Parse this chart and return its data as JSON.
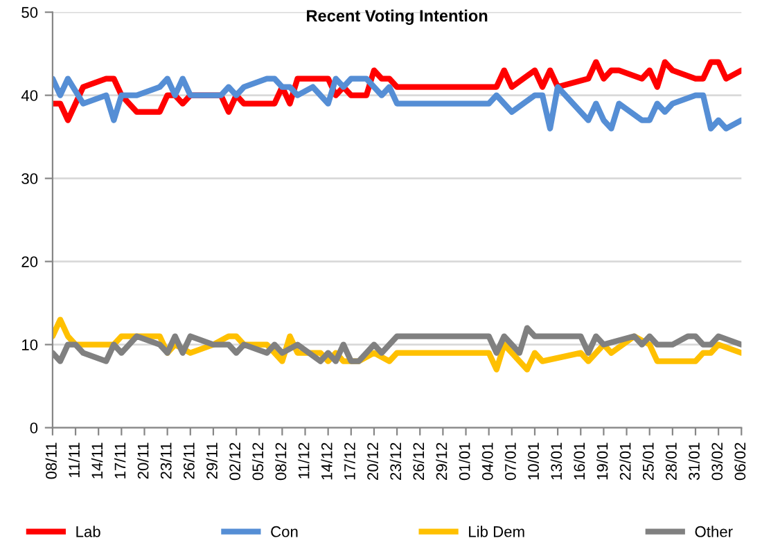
{
  "chart_data": {
    "type": "line",
    "title": "Recent Voting Intention",
    "categories": [
      "08/11",
      null,
      null,
      "11/11",
      null,
      null,
      "14/11",
      null,
      null,
      "17/11",
      null,
      null,
      "20/11",
      null,
      null,
      "23/11",
      null,
      null,
      "26/11",
      null,
      null,
      "29/11",
      null,
      null,
      "02/12",
      null,
      null,
      "05/12",
      null,
      null,
      "08/12",
      null,
      null,
      "11/12",
      null,
      null,
      "14/12",
      null,
      null,
      "17/12",
      null,
      null,
      "20/12",
      null,
      null,
      "23/12",
      null,
      null,
      "26/12",
      null,
      null,
      "29/12",
      null,
      null,
      "01/01",
      null,
      null,
      "04/01",
      null,
      null,
      "07/01",
      null,
      null,
      "10/01",
      null,
      null,
      "13/01",
      null,
      null,
      "16/01",
      null,
      null,
      "19/01",
      null,
      null,
      "22/01",
      null,
      null,
      "25/01",
      null,
      null,
      "28/01",
      null,
      null,
      "31/01",
      null,
      null,
      "03/02",
      null,
      null,
      "06/02"
    ],
    "ylim": [
      0,
      50
    ],
    "yticks": [
      0,
      10,
      20,
      30,
      40,
      50
    ],
    "grid": "y",
    "legend": "bottom",
    "marker": "none",
    "line_style": "solid",
    "series": [
      {
        "name": "Lab",
        "color": "#ff0000",
        "values": [
          39,
          39,
          37,
          null,
          41,
          null,
          null,
          42,
          42,
          40,
          null,
          38,
          null,
          null,
          38,
          40,
          40,
          39,
          40,
          null,
          null,
          null,
          40,
          38,
          40,
          39,
          null,
          null,
          null,
          39,
          41,
          39,
          42,
          null,
          null,
          null,
          42,
          40,
          41,
          40,
          null,
          40,
          43,
          42,
          42,
          41,
          null,
          null,
          null,
          null,
          null,
          null,
          null,
          null,
          null,
          null,
          null,
          null,
          41,
          43,
          41,
          null,
          null,
          43,
          41,
          43,
          41,
          null,
          null,
          null,
          42,
          44,
          42,
          43,
          43,
          null,
          null,
          42,
          43,
          41,
          44,
          43,
          null,
          null,
          42,
          42,
          44,
          44,
          42,
          null,
          43
        ]
      },
      {
        "name": "Con",
        "color": "#558ed5",
        "values": [
          42,
          40,
          42,
          null,
          39,
          null,
          null,
          40,
          37,
          40,
          null,
          40,
          null,
          null,
          41,
          42,
          40,
          42,
          40,
          null,
          null,
          null,
          40,
          41,
          40,
          41,
          null,
          null,
          42,
          42,
          41,
          41,
          40,
          null,
          41,
          null,
          39,
          42,
          41,
          42,
          null,
          42,
          null,
          40,
          41,
          39,
          null,
          null,
          null,
          null,
          null,
          null,
          null,
          null,
          null,
          null,
          null,
          39,
          40,
          null,
          38,
          null,
          null,
          40,
          40,
          36,
          41,
          null,
          null,
          null,
          37,
          39,
          37,
          36,
          39,
          null,
          null,
          37,
          37,
          39,
          38,
          39,
          null,
          null,
          40,
          40,
          36,
          37,
          36,
          null,
          37
        ]
      },
      {
        "name": "Lib Dem",
        "color": "#ffc000",
        "values": [
          11,
          13,
          11,
          10,
          null,
          null,
          null,
          null,
          10,
          11,
          null,
          null,
          null,
          null,
          11,
          9,
          10,
          null,
          9,
          null,
          null,
          10,
          null,
          11,
          11,
          10,
          null,
          null,
          10,
          null,
          8,
          11,
          9,
          null,
          null,
          9,
          8,
          9,
          8,
          null,
          8,
          null,
          9,
          null,
          8,
          9,
          null,
          null,
          null,
          null,
          null,
          null,
          null,
          null,
          null,
          null,
          null,
          9,
          7,
          10,
          null,
          8,
          7,
          9,
          8,
          null,
          null,
          null,
          null,
          9,
          8,
          null,
          10,
          9,
          null,
          null,
          11,
          null,
          10,
          8,
          null,
          null,
          null,
          null,
          8,
          9,
          9,
          10,
          null,
          null,
          9
        ]
      },
      {
        "name": "Other",
        "color": "#808080",
        "values": [
          9,
          8,
          10,
          10,
          9,
          null,
          null,
          8,
          10,
          9,
          null,
          11,
          null,
          null,
          10,
          9,
          11,
          9,
          11,
          null,
          null,
          10,
          null,
          10,
          9,
          10,
          null,
          null,
          9,
          10,
          9,
          null,
          10,
          null,
          null,
          8,
          9,
          8,
          10,
          8,
          8,
          null,
          10,
          9,
          null,
          11,
          null,
          null,
          null,
          null,
          null,
          null,
          null,
          null,
          null,
          null,
          null,
          11,
          9,
          11,
          null,
          9,
          12,
          11,
          null,
          null,
          null,
          null,
          null,
          11,
          9,
          11,
          10,
          null,
          null,
          null,
          11,
          10,
          11,
          10,
          null,
          10,
          null,
          11,
          11,
          10,
          10,
          11,
          null,
          null,
          10
        ]
      }
    ]
  }
}
